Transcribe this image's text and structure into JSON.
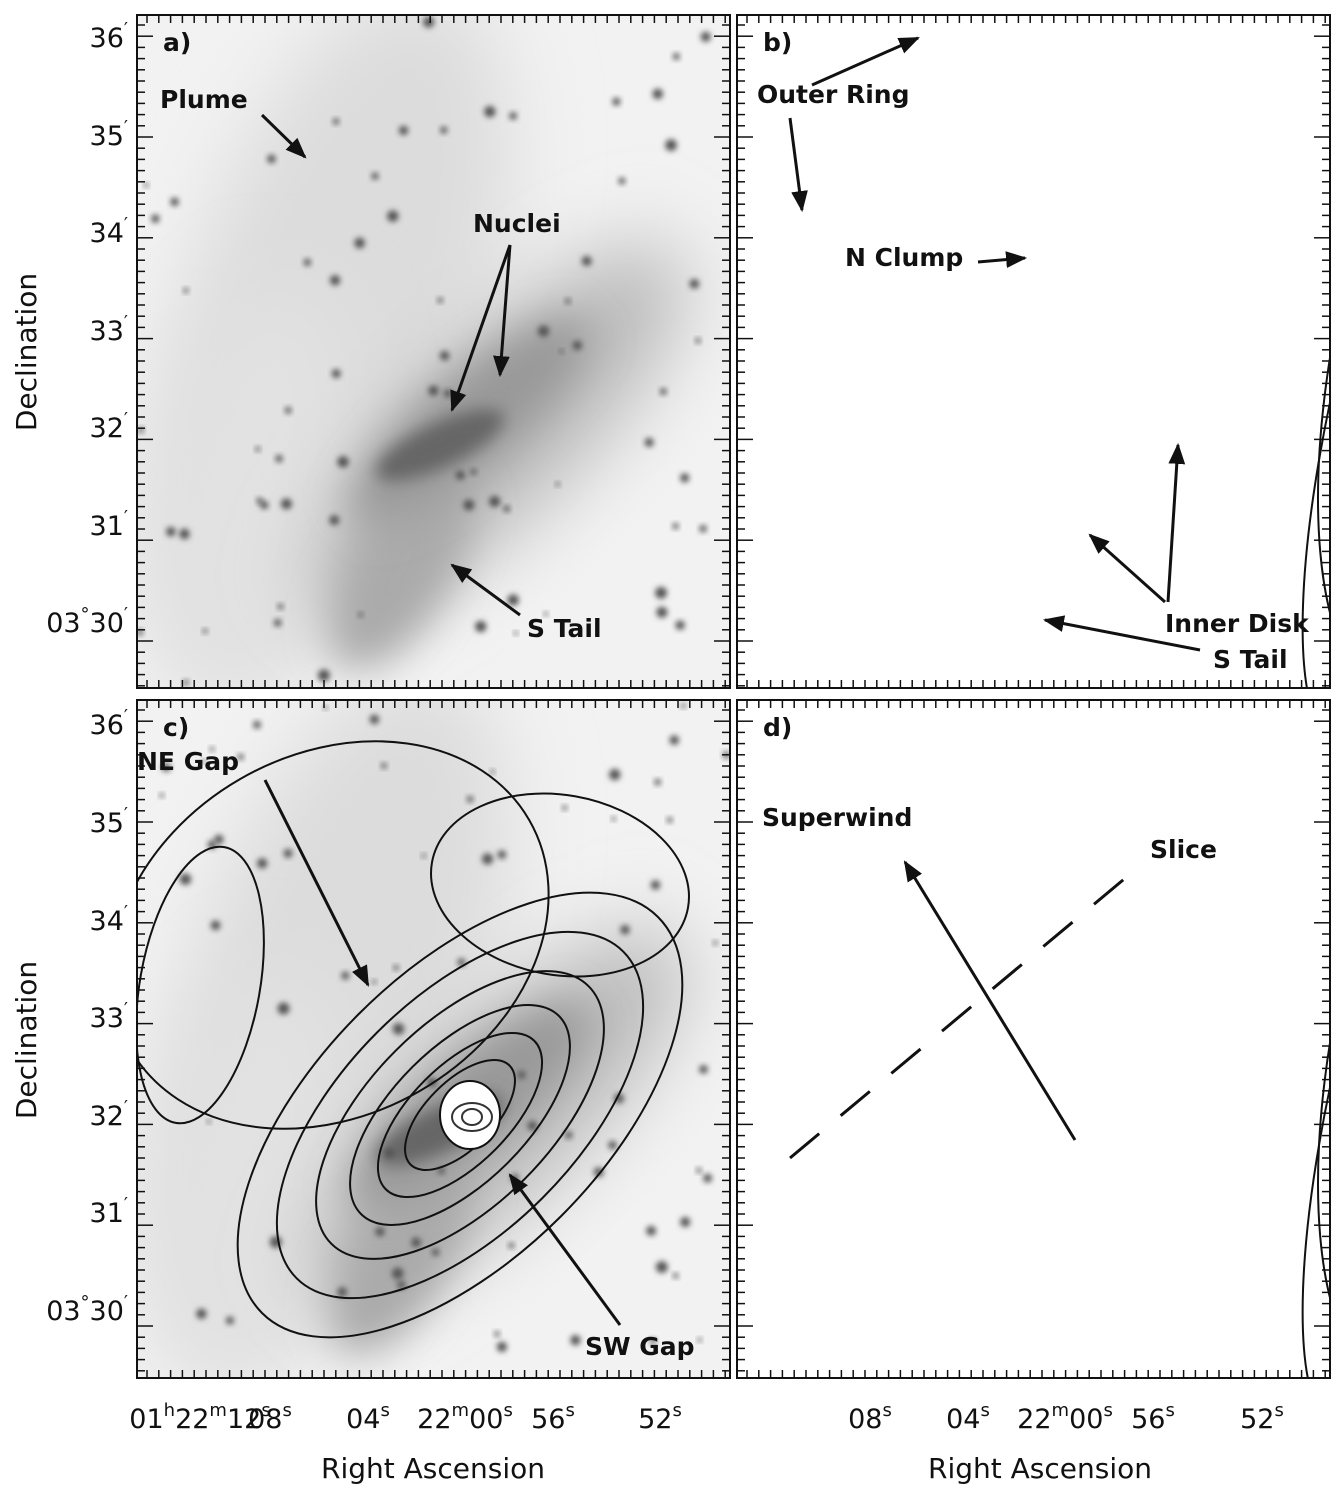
{
  "axes": {
    "y_title": "Declination",
    "x_title": "Right Ascension",
    "y_ticks": [
      [
        "36",
        "′"
      ],
      [
        "35",
        "′"
      ],
      [
        "34",
        "′"
      ],
      [
        "33",
        "′"
      ],
      [
        "32",
        "′"
      ],
      [
        "31",
        "′"
      ],
      [
        "03",
        "°",
        "30",
        "′"
      ]
    ],
    "x_ticks_left": [
      [
        "01",
        "h",
        "22",
        "m",
        "12",
        "s"
      ],
      [
        "08",
        "s"
      ],
      [
        "04",
        "s"
      ],
      [
        "22",
        "m",
        "00",
        "s"
      ],
      [
        "56",
        "s"
      ],
      [
        "52",
        "s"
      ]
    ],
    "x_ticks_right": [
      [
        "08",
        "s"
      ],
      [
        "04",
        "s"
      ],
      [
        "22",
        "m",
        "00",
        "s"
      ],
      [
        "56",
        "s"
      ],
      [
        "52",
        "s"
      ]
    ]
  },
  "panels": [
    {
      "label": "a)",
      "annotations": [
        "Plume",
        "Nuclei",
        "S Tail"
      ]
    },
    {
      "label": "b)",
      "annotations": [
        "Outer Ring",
        "N Clump",
        "Inner Disk",
        "S Tail"
      ]
    },
    {
      "label": "c)",
      "annotations": [
        "NE Gap",
        "SW Gap"
      ]
    },
    {
      "label": "d)",
      "annotations": [
        "Superwind",
        "Slice"
      ]
    }
  ]
}
